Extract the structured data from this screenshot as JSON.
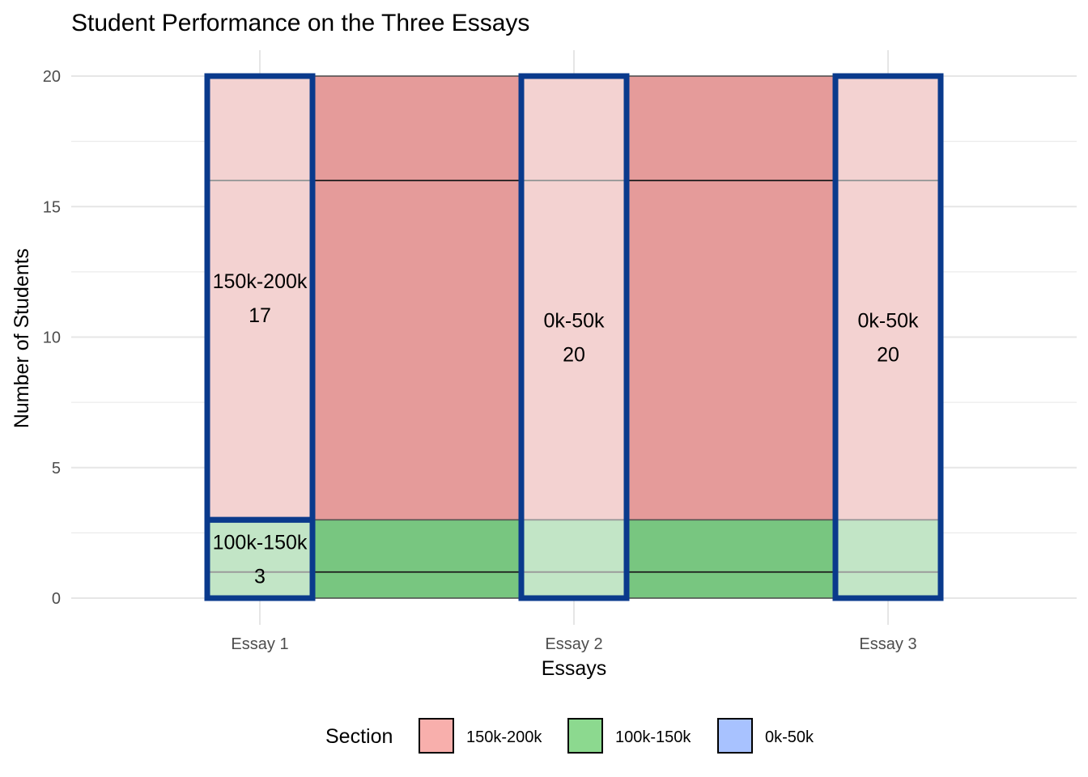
{
  "chart_data": {
    "type": "bar",
    "title": "Student Performance on the Three Essays",
    "xlabel": "Essays",
    "ylabel": "Number of Students",
    "categories": [
      "Essay 1",
      "Essay 2",
      "Essay 3"
    ],
    "ylim": [
      0,
      20
    ],
    "yticks": [
      0,
      5,
      10,
      15,
      20
    ],
    "grid": true,
    "legend_position": "bottom",
    "legend": {
      "title": "Section",
      "entries": [
        {
          "label": "150k-200k",
          "color": "#F8AFAC"
        },
        {
          "label": "100k-150k",
          "color": "#8CD98F"
        },
        {
          "label": "0k-50k",
          "color": "#A8C2FF"
        }
      ]
    },
    "strata": [
      {
        "name": "150k-200k",
        "color": "#E59B9A",
        "bounds": [
          [
            3,
            20
          ],
          [
            3,
            20
          ],
          [
            3,
            20
          ]
        ]
      },
      {
        "name": "100k-150k",
        "color": "#78C680",
        "bounds": [
          [
            0,
            3
          ],
          [
            0,
            3
          ],
          [
            0,
            3
          ]
        ]
      }
    ],
    "divider_lines": [
      16,
      1
    ],
    "bars": [
      {
        "category": "Essay 1",
        "segments": [
          {
            "ymin": 3,
            "ymax": 20,
            "color": "#F2CDCC",
            "label": "150k-200k",
            "value": "17"
          },
          {
            "ymin": 0,
            "ymax": 3,
            "color": "#BEE1C1",
            "label": "100k-150k",
            "value": "3"
          }
        ]
      },
      {
        "category": "Essay 2",
        "segments": [
          {
            "ymin": 0,
            "ymax": 20,
            "color": "#F2CDCC",
            "label": "0k-50k",
            "value": "20"
          }
        ]
      },
      {
        "category": "Essay 3",
        "segments": [
          {
            "ymin": 0,
            "ymax": 20,
            "color": "#F2CDCC",
            "label": "0k-50k",
            "value": "20"
          }
        ]
      }
    ],
    "bar_outline_color": "#0A3A8C"
  }
}
